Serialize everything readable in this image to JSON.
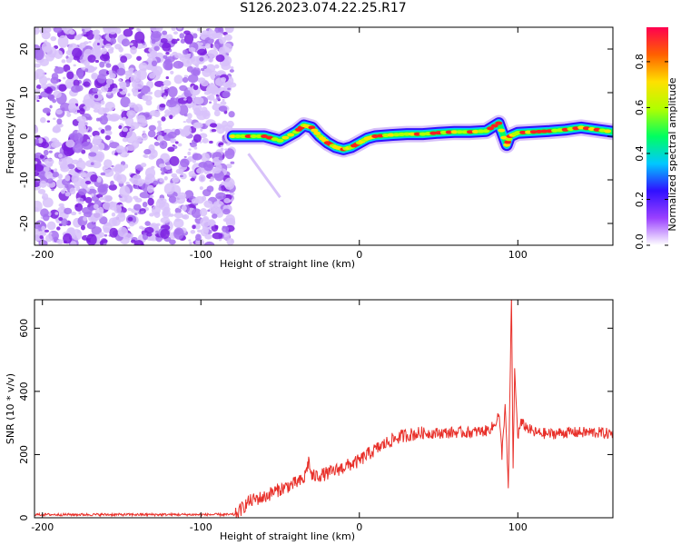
{
  "title": "S126.2023.074.22.25.R17",
  "chart_data": [
    {
      "type": "heatmap",
      "title": "S126.2023.074.22.25.R17",
      "xlabel": "Height of straight line (km)",
      "ylabel": "Frequency (Hz)",
      "xlim": [
        -205,
        160
      ],
      "ylim": [
        -25,
        25
      ],
      "xticks": [
        -200,
        -100,
        0,
        100
      ],
      "yticks": [
        -20,
        -10,
        0,
        10,
        20
      ],
      "noise_region_x": [
        -205,
        -80
      ],
      "ridge": {
        "x": [
          -80,
          -70,
          -60,
          -50,
          -40,
          -35,
          -30,
          -25,
          -20,
          -15,
          -10,
          -5,
          0,
          5,
          10,
          20,
          30,
          40,
          50,
          60,
          70,
          80,
          88,
          93,
          95,
          100,
          110,
          120,
          130,
          140,
          150,
          160
        ],
        "y": [
          0,
          0,
          0,
          -1,
          1,
          2.5,
          2,
          0,
          -1.5,
          -2.5,
          -3,
          -2.5,
          -1.5,
          -0.5,
          0,
          0.3,
          0.5,
          0.5,
          0.8,
          1,
          1,
          1.2,
          3,
          -2,
          0,
          0.8,
          1,
          1.2,
          1.5,
          2,
          1.5,
          1
        ]
      },
      "colorbar": {
        "label": "Normalized spectral amplitude",
        "range": [
          0,
          0.95
        ],
        "ticks": [
          0.0,
          0.2,
          0.4,
          0.6,
          0.8
        ],
        "tick_labels": [
          "0.0",
          "0.2",
          "0.4",
          "0.6",
          "0.8"
        ],
        "colors": [
          "#ffffff",
          "#9a40ff",
          "#3010ff",
          "#00c8ff",
          "#00ff60",
          "#b0ff00",
          "#ffe000",
          "#ff6000",
          "#ff0050"
        ]
      }
    },
    {
      "type": "line",
      "xlabel": "Height of straight line (km)",
      "ylabel": "SNR (10 * v/v)",
      "xlim": [
        -205,
        160
      ],
      "ylim": [
        0,
        690
      ],
      "xticks": [
        -200,
        -100,
        0,
        100
      ],
      "yticks": [
        0,
        200,
        400,
        600
      ],
      "color": "#e8302a",
      "series": [
        {
          "x": [
            -205,
            -180,
            -150,
            -120,
            -90,
            -78,
            -74,
            -70,
            -65,
            -60,
            -55,
            -50,
            -45,
            -40,
            -35,
            -32,
            -30,
            -25,
            -20,
            -15,
            -10,
            -5,
            0,
            5,
            10,
            15,
            20,
            25,
            30,
            35,
            40,
            50,
            60,
            70,
            80,
            85,
            88,
            90,
            92,
            94,
            96,
            97,
            98,
            100,
            102,
            110,
            120,
            130,
            140,
            150,
            160
          ],
          "y": [
            10,
            10,
            10,
            10,
            10,
            10,
            30,
            50,
            60,
            65,
            80,
            90,
            100,
            110,
            120,
            180,
            130,
            135,
            140,
            150,
            160,
            170,
            180,
            200,
            215,
            230,
            245,
            255,
            262,
            265,
            268,
            268,
            270,
            270,
            275,
            290,
            330,
            200,
            360,
            90,
            690,
            150,
            460,
            260,
            300,
            270,
            265,
            270,
            270,
            270,
            265
          ]
        }
      ]
    }
  ]
}
